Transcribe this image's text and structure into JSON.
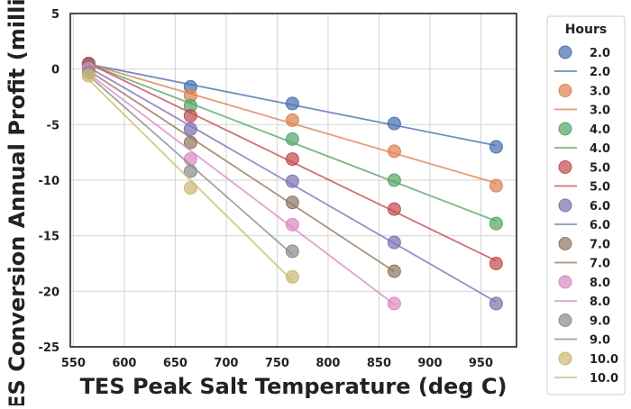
{
  "chart_data": {
    "type": "scatter",
    "xlabel": "TES Peak Salt Temperature (deg C)",
    "ylabel": "TES Conversion Annual Profit (million $)",
    "xlim": [
      547,
      985
    ],
    "ylim": [
      -25,
      5
    ],
    "xticks": [
      550,
      600,
      650,
      700,
      750,
      800,
      850,
      900,
      950
    ],
    "yticks": [
      5,
      0,
      -5,
      -10,
      -15,
      -20,
      -25
    ],
    "grid": true,
    "legend": {
      "title": "Hours",
      "placement": "outside-right"
    },
    "series": [
      {
        "name": "2.0",
        "color": "#4c72b0",
        "x": [
          565,
          665,
          765,
          865,
          965
        ],
        "y": [
          0.5,
          -1.6,
          -3.1,
          -4.9,
          -7.0
        ]
      },
      {
        "name": "3.0",
        "color": "#dd8452",
        "x": [
          565,
          665,
          765,
          865,
          965
        ],
        "y": [
          0.4,
          -2.4,
          -4.6,
          -7.4,
          -10.5
        ]
      },
      {
        "name": "4.0",
        "color": "#55a868",
        "x": [
          565,
          665,
          765,
          865,
          965
        ],
        "y": [
          0.4,
          -3.3,
          -6.3,
          -10.0,
          -13.9
        ]
      },
      {
        "name": "5.0",
        "color": "#c44e52",
        "x": [
          565,
          665,
          765,
          865,
          965
        ],
        "y": [
          0.5,
          -4.2,
          -8.1,
          -12.6,
          -17.5
        ]
      },
      {
        "name": "6.0",
        "color": "#8172b3",
        "x": [
          565,
          665,
          765,
          865,
          965
        ],
        "y": [
          0.2,
          -5.4,
          -10.1,
          -15.6,
          -21.1
        ]
      },
      {
        "name": "7.0",
        "color": "#937860",
        "x": [
          565,
          665,
          765,
          865
        ],
        "y": [
          0.1,
          -6.6,
          -12.0,
          -18.2
        ]
      },
      {
        "name": "8.0",
        "color": "#da8bc3",
        "x": [
          565,
          665,
          765,
          865
        ],
        "y": [
          0.0,
          -8.1,
          -14.0,
          -21.1
        ]
      },
      {
        "name": "9.0",
        "color": "#8c8c8c",
        "x": [
          565,
          665,
          765
        ],
        "y": [
          -0.3,
          -9.2,
          -16.4
        ]
      },
      {
        "name": "10.0",
        "color": "#ccb974",
        "x": [
          565,
          665,
          765
        ],
        "y": [
          -0.6,
          -10.7,
          -18.7
        ]
      }
    ]
  }
}
